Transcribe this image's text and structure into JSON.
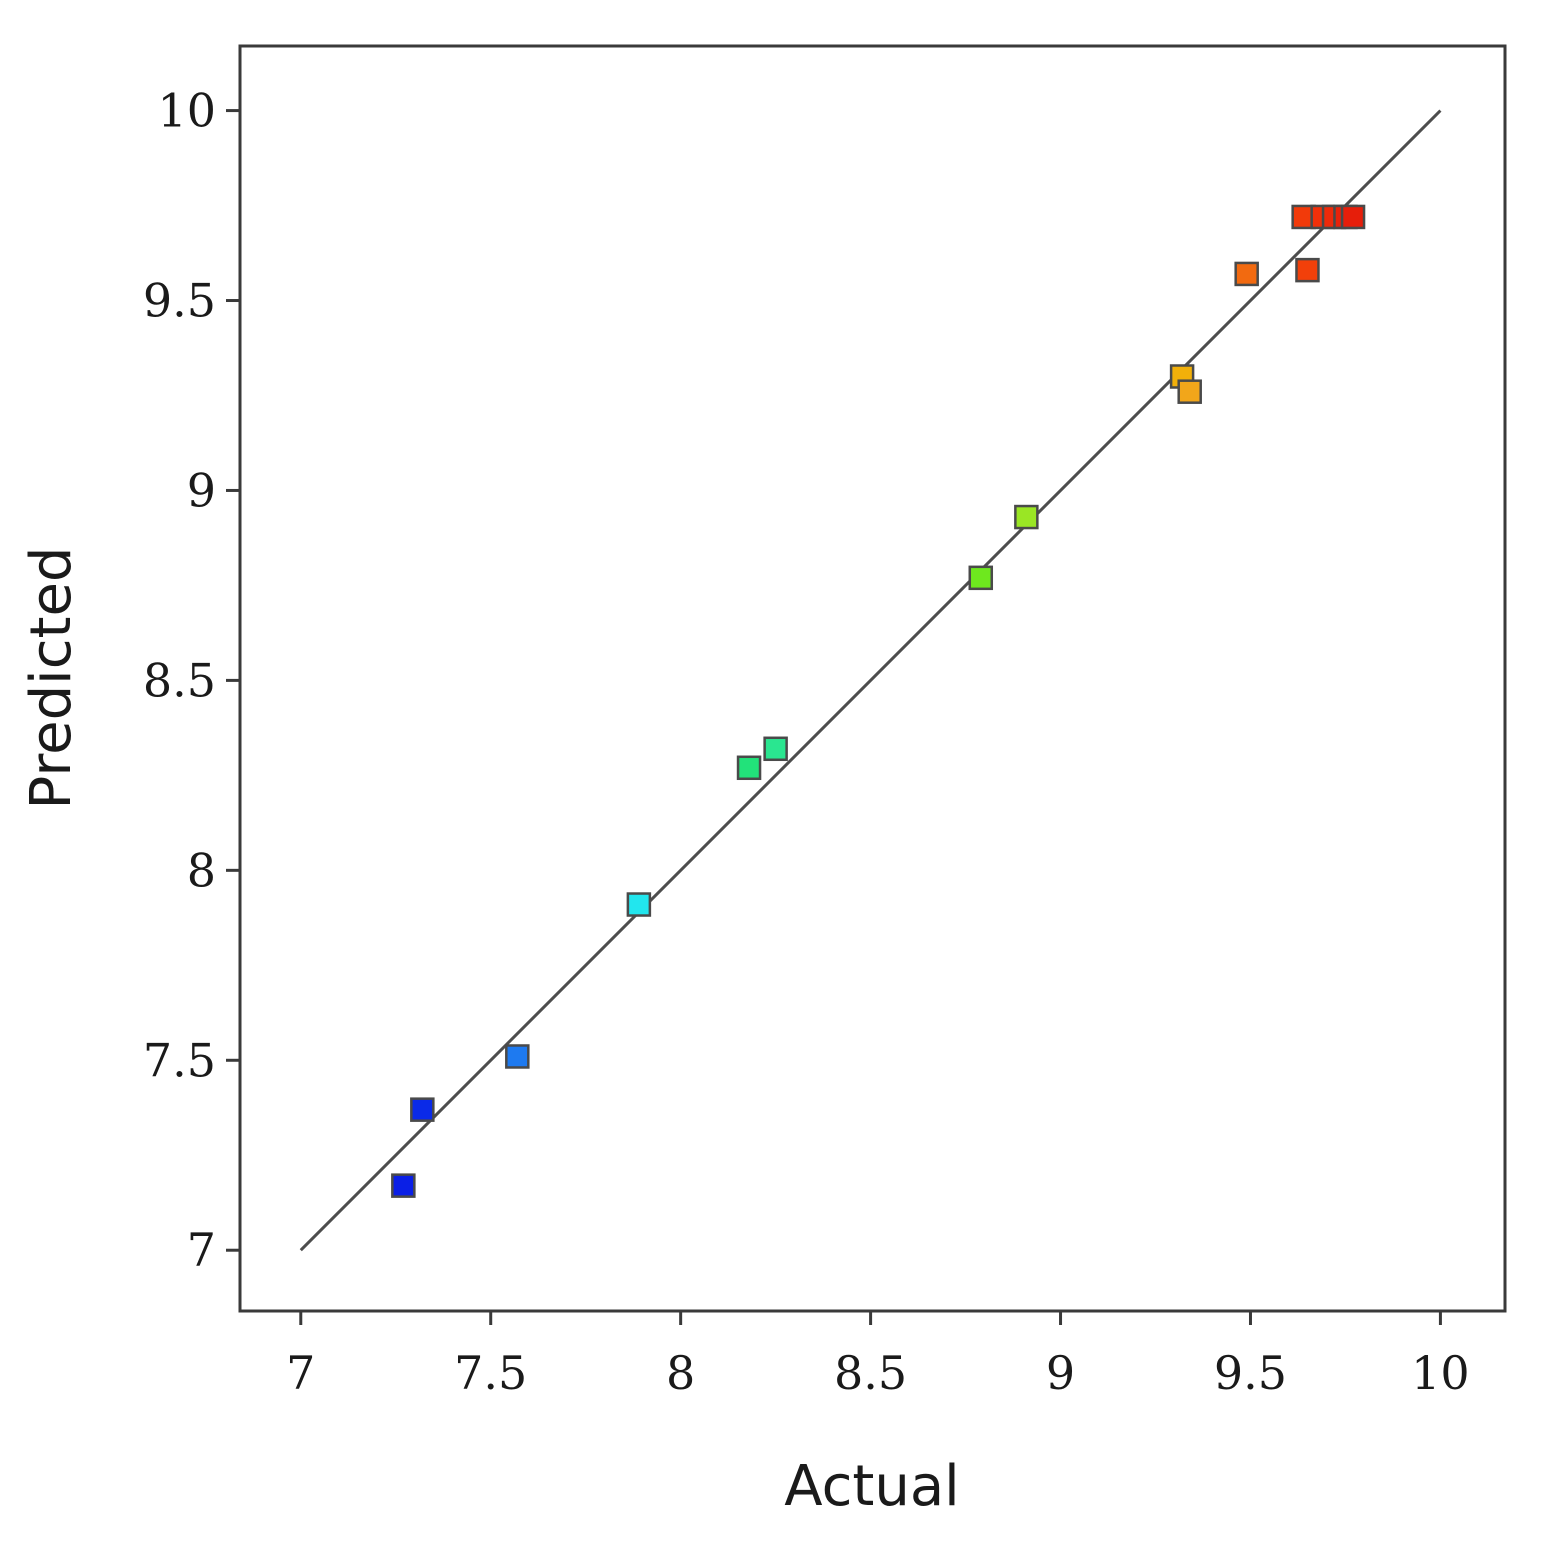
{
  "chart_data": {
    "type": "scatter",
    "title": "",
    "xlabel": "Actual",
    "ylabel": "Predicted",
    "xlim": [
      6.84,
      10.17
    ],
    "ylim": [
      6.84,
      10.17
    ],
    "xticks": [
      "7",
      "7.5",
      "8",
      "8.5",
      "9",
      "9.5",
      "10"
    ],
    "yticks": [
      "7",
      "7.5",
      "8",
      "8.5",
      "9",
      "9.5",
      "10"
    ],
    "grid": false,
    "legend": "none",
    "reference_line": {
      "x": [
        7,
        10
      ],
      "y": [
        7,
        10
      ],
      "color": "#4d4d4d"
    },
    "points": [
      {
        "x": 7.27,
        "y": 7.17,
        "color": "#0a1fe6"
      },
      {
        "x": 7.32,
        "y": 7.37,
        "color": "#0a2ae8"
      },
      {
        "x": 7.57,
        "y": 7.51,
        "color": "#1e7af0"
      },
      {
        "x": 7.89,
        "y": 7.91,
        "color": "#22e6ee"
      },
      {
        "x": 8.18,
        "y": 8.27,
        "color": "#22e27a"
      },
      {
        "x": 8.25,
        "y": 8.32,
        "color": "#2ae690"
      },
      {
        "x": 8.79,
        "y": 8.77,
        "color": "#6ee81e"
      },
      {
        "x": 8.91,
        "y": 8.93,
        "color": "#9ae624"
      },
      {
        "x": 9.32,
        "y": 9.3,
        "color": "#f2b00a"
      },
      {
        "x": 9.34,
        "y": 9.26,
        "color": "#f2a61a"
      },
      {
        "x": 9.49,
        "y": 9.57,
        "color": "#f26a10"
      },
      {
        "x": 9.64,
        "y": 9.72,
        "color": "#f23a0a"
      },
      {
        "x": 9.65,
        "y": 9.58,
        "color": "#f2400a"
      },
      {
        "x": 9.69,
        "y": 9.72,
        "color": "#f2300a"
      },
      {
        "x": 9.72,
        "y": 9.72,
        "color": "#ee2a0a"
      },
      {
        "x": 9.75,
        "y": 9.72,
        "color": "#e8220a"
      },
      {
        "x": 9.77,
        "y": 9.72,
        "color": "#e61e0a"
      }
    ]
  }
}
